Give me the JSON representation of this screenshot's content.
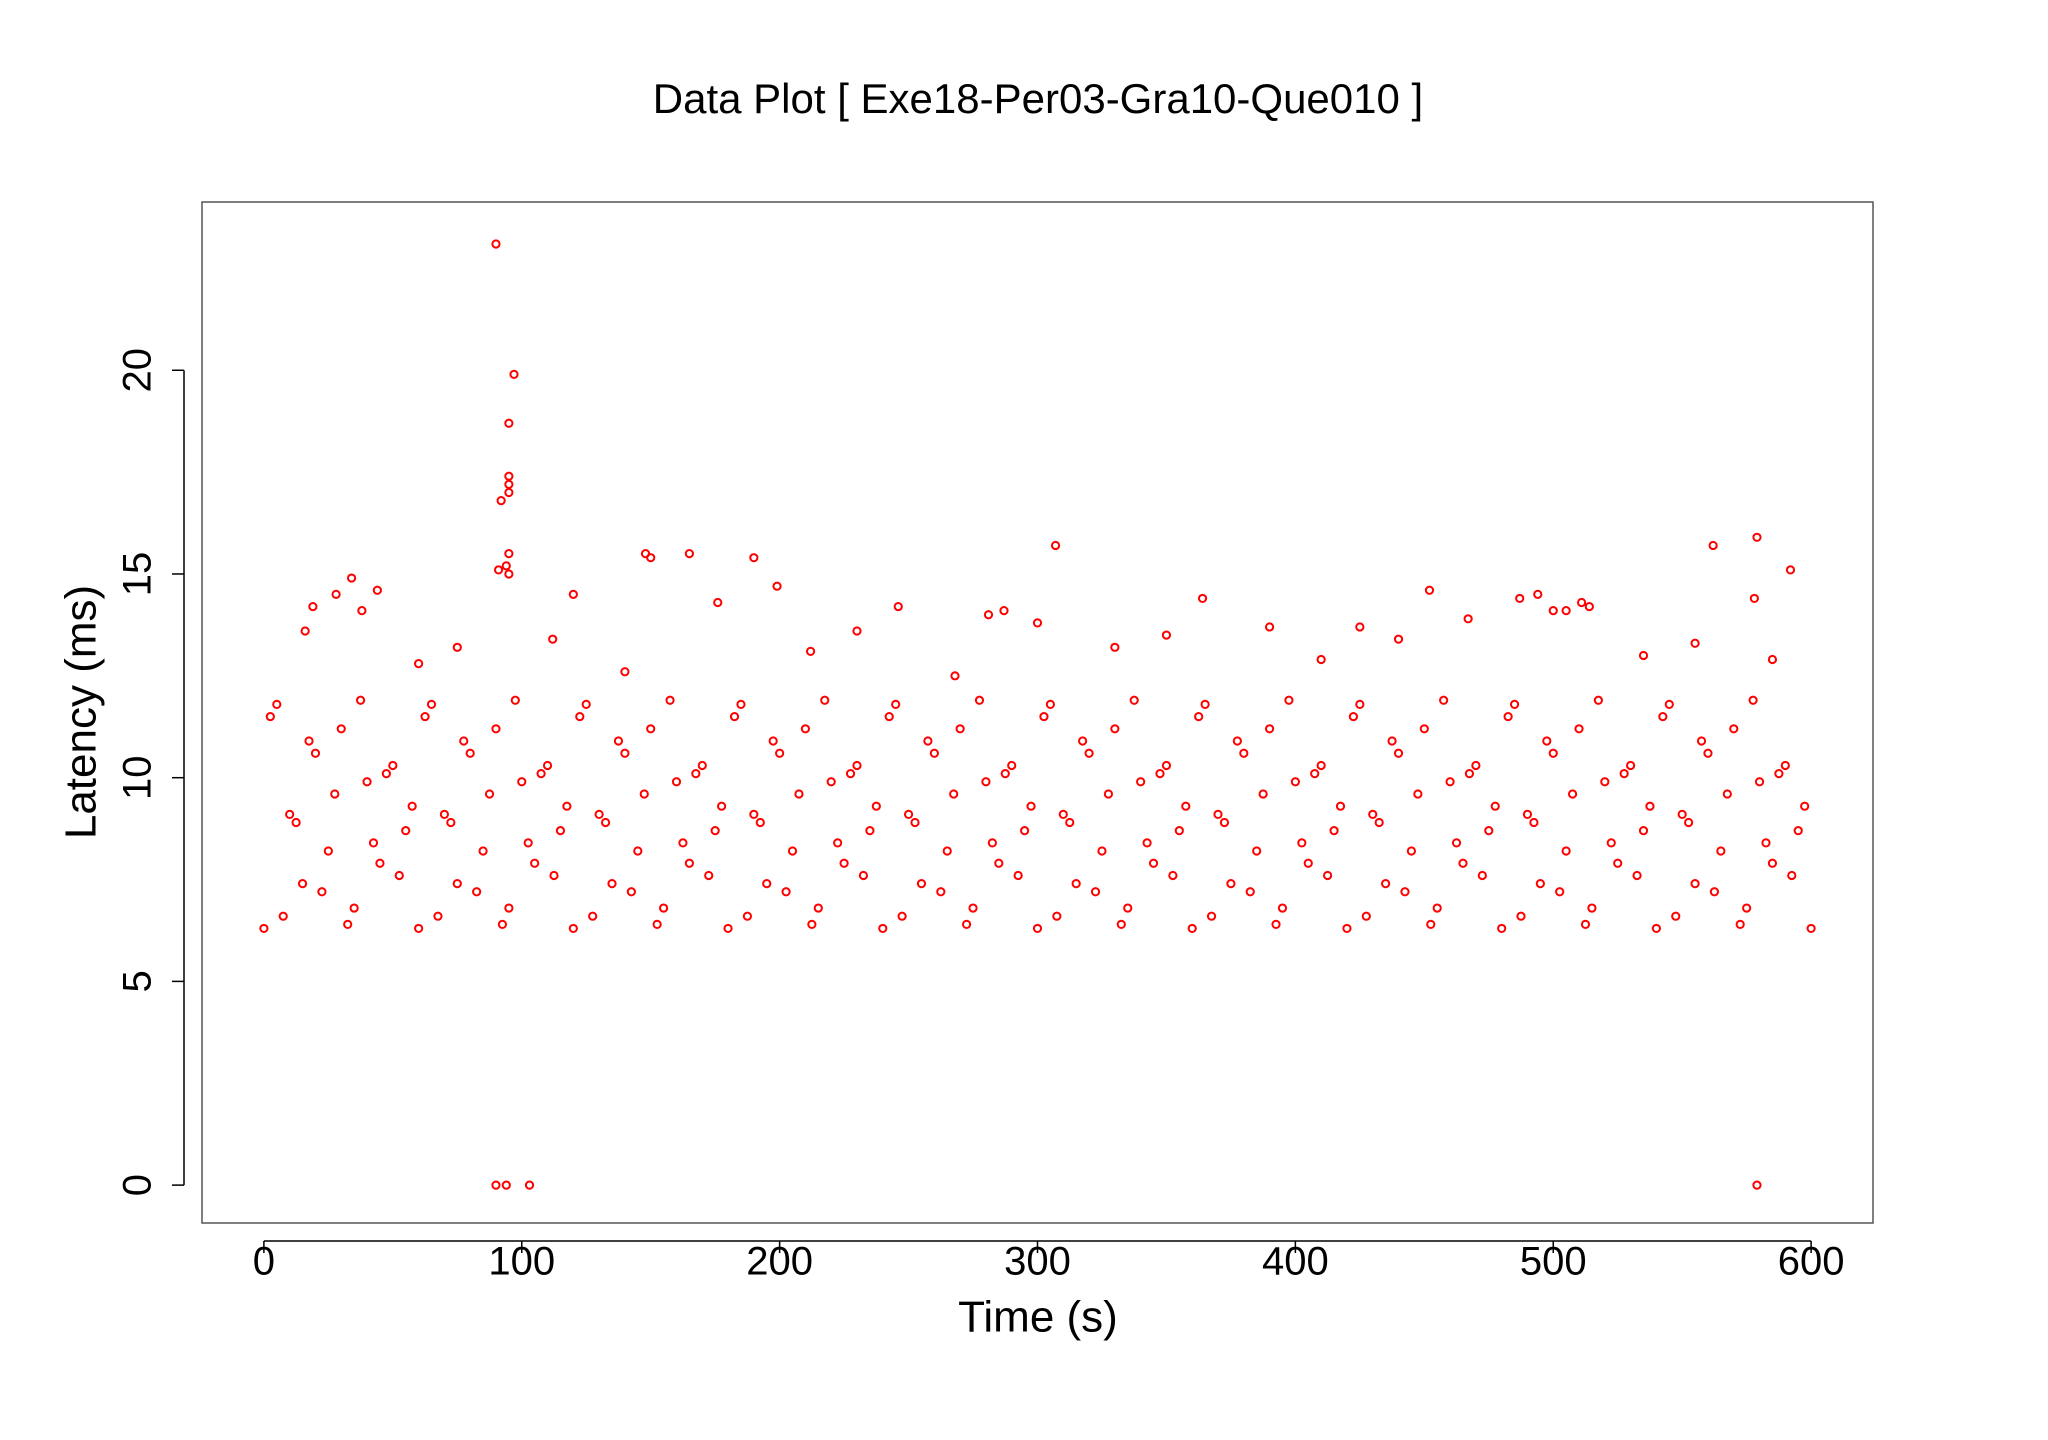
{
  "chart_data": {
    "type": "scatter",
    "title": "Data Plot [ Exe18-Per03-Gra10-Que010 ]",
    "xlabel": "Time (s)",
    "ylabel": "Latency (ms)",
    "color": "#ff0000",
    "x": [
      90,
      97,
      95,
      95,
      95,
      95,
      92,
      95,
      91,
      94,
      95,
      90,
      94,
      103,
      579,
      307,
      562,
      579,
      592,
      165,
      148,
      150,
      190,
      34,
      44,
      199,
      246,
      364,
      452,
      494,
      511,
      514,
      578,
      487,
      120,
      176,
      300,
      287,
      281,
      390,
      425,
      467,
      500,
      505,
      19,
      28,
      16,
      38,
      60,
      75,
      112,
      140,
      212,
      230,
      268,
      330,
      350,
      410,
      440,
      535,
      555,
      585,
      0,
      5,
      10,
      15,
      20,
      25,
      30,
      35,
      40,
      45,
      50,
      55,
      60,
      65,
      70,
      75,
      80,
      85,
      90,
      95,
      100,
      105,
      110,
      115,
      120,
      125,
      130,
      135,
      140,
      145,
      150,
      155,
      160,
      165,
      170,
      175,
      180,
      185,
      190,
      195,
      200,
      205,
      210,
      215,
      220,
      225,
      230,
      235,
      240,
      245,
      250,
      255,
      260,
      265,
      270,
      275,
      280,
      285,
      290,
      295,
      300,
      305,
      310,
      315,
      320,
      325,
      330,
      335,
      340,
      345,
      350,
      355,
      360,
      365,
      370,
      375,
      380,
      385,
      390,
      395,
      400,
      405,
      410,
      415,
      420,
      425,
      430,
      435,
      440,
      445,
      450,
      455,
      460,
      465,
      470,
      475,
      480,
      485,
      490,
      495,
      500,
      505,
      510,
      515,
      520,
      525,
      530,
      535,
      540,
      545,
      550,
      555,
      560,
      565,
      570,
      575,
      580,
      585,
      590,
      595,
      600,
      2.5,
      7.5,
      12.5,
      17.5,
      22.5,
      27.5,
      32.5,
      37.5,
      42.5,
      47.5,
      52.5,
      57.5,
      62.5,
      67.5,
      72.5,
      77.5,
      82.5,
      87.5,
      92.5,
      97.5,
      102.5,
      107.5,
      112.5,
      117.5,
      122.5,
      127.5,
      132.5,
      137.5,
      142.5,
      147.5,
      152.5,
      157.5,
      162.5,
      167.5,
      172.5,
      177.5,
      182.5,
      187.5,
      192.5,
      197.5,
      202.5,
      207.5,
      212.5,
      217.5,
      222.5,
      227.5,
      232.5,
      237.5,
      242.5,
      247.5,
      252.5,
      257.5,
      262.5,
      267.5,
      272.5,
      277.5,
      282.5,
      287.5,
      292.5,
      297.5,
      302.5,
      307.5,
      312.5,
      317.5,
      322.5,
      327.5,
      332.5,
      337.5,
      342.5,
      347.5,
      352.5,
      357.5,
      362.5,
      367.5,
      372.5,
      377.5,
      382.5,
      387.5,
      392.5,
      397.5,
      402.5,
      407.5,
      412.5,
      417.5,
      422.5,
      427.5,
      432.5,
      437.5,
      442.5,
      447.5,
      452.5,
      457.5,
      462.5,
      467.5,
      472.5,
      477.5,
      482.5,
      487.5,
      492.5,
      497.5,
      502.5,
      507.5,
      512.5,
      517.5,
      522.5,
      527.5,
      532.5,
      537.5,
      542.5,
      547.5,
      552.5,
      557.5,
      562.5,
      567.5,
      572.5,
      577.5,
      582.5,
      587.5,
      592.5,
      597.5
    ],
    "values": [
      23.1,
      19.9,
      18.7,
      17.4,
      17.2,
      17.0,
      16.8,
      15.5,
      15.1,
      15.2,
      15.0,
      0,
      0,
      0,
      0,
      15.7,
      15.7,
      15.9,
      15.1,
      15.5,
      15.5,
      15.4,
      15.4,
      14.9,
      14.6,
      14.7,
      14.2,
      14.4,
      14.6,
      14.5,
      14.3,
      14.2,
      14.4,
      14.4,
      14.5,
      14.3,
      13.8,
      14.1,
      14.0,
      13.7,
      13.7,
      13.9,
      14.1,
      14.1,
      14.2,
      14.5,
      13.6,
      14.1,
      12.8,
      13.2,
      13.4,
      12.6,
      13.1,
      13.6,
      12.5,
      13.2,
      13.5,
      12.9,
      13.4,
      13.0,
      13.3,
      12.9,
      6.3,
      11.8,
      9.1,
      7.4,
      10.6,
      8.2,
      11.2,
      6.8,
      9.9,
      7.9,
      10.3,
      8.7,
      6.3,
      11.8,
      9.1,
      7.4,
      10.6,
      8.2,
      11.2,
      6.8,
      9.9,
      7.9,
      10.3,
      8.7,
      6.3,
      11.8,
      9.1,
      7.4,
      10.6,
      8.2,
      11.2,
      6.8,
      9.9,
      7.9,
      10.3,
      8.7,
      6.3,
      11.8,
      9.1,
      7.4,
      10.6,
      8.2,
      11.2,
      6.8,
      9.9,
      7.9,
      10.3,
      8.7,
      6.3,
      11.8,
      9.1,
      7.4,
      10.6,
      8.2,
      11.2,
      6.8,
      9.9,
      7.9,
      10.3,
      8.7,
      6.3,
      11.8,
      9.1,
      7.4,
      10.6,
      8.2,
      11.2,
      6.8,
      9.9,
      7.9,
      10.3,
      8.7,
      6.3,
      11.8,
      9.1,
      7.4,
      10.6,
      8.2,
      11.2,
      6.8,
      9.9,
      7.9,
      10.3,
      8.7,
      6.3,
      11.8,
      9.1,
      7.4,
      10.6,
      8.2,
      11.2,
      6.8,
      9.9,
      7.9,
      10.3,
      8.7,
      6.3,
      11.8,
      9.1,
      7.4,
      10.6,
      8.2,
      11.2,
      6.8,
      9.9,
      7.9,
      10.3,
      8.7,
      6.3,
      11.8,
      9.1,
      7.4,
      10.6,
      8.2,
      11.2,
      6.8,
      9.9,
      7.9,
      10.3,
      8.7,
      6.3,
      11.5,
      6.6,
      8.9,
      10.9,
      7.2,
      9.6,
      6.4,
      11.9,
      8.4,
      10.1,
      7.6,
      9.3,
      11.5,
      6.6,
      8.9,
      10.9,
      7.2,
      9.6,
      6.4,
      11.9,
      8.4,
      10.1,
      7.6,
      9.3,
      11.5,
      6.6,
      8.9,
      10.9,
      7.2,
      9.6,
      6.4,
      11.9,
      8.4,
      10.1,
      7.6,
      9.3,
      11.5,
      6.6,
      8.9,
      10.9,
      7.2,
      9.6,
      6.4,
      11.9,
      8.4,
      10.1,
      7.6,
      9.3,
      11.5,
      6.6,
      8.9,
      10.9,
      7.2,
      9.6,
      6.4,
      11.9,
      8.4,
      10.1,
      7.6,
      9.3,
      11.5,
      6.6,
      8.9,
      10.9,
      7.2,
      9.6,
      6.4,
      11.9,
      8.4,
      10.1,
      7.6,
      9.3,
      11.5,
      6.6,
      8.9,
      10.9,
      7.2,
      9.6,
      6.4,
      11.9,
      8.4,
      10.1,
      7.6,
      9.3,
      11.5,
      6.6,
      8.9,
      10.9,
      7.2,
      9.6,
      6.4,
      11.9,
      8.4,
      10.1,
      7.6,
      9.3,
      11.5,
      6.6,
      8.9,
      10.9,
      7.2,
      9.6,
      6.4,
      11.9,
      8.4,
      10.1,
      7.6,
      9.3,
      11.5,
      6.6,
      8.9,
      10.9,
      7.2,
      9.6,
      6.4,
      11.9,
      8.4,
      10.1,
      7.6,
      9.3
    ],
    "xlim": [
      -24,
      624
    ],
    "ylim": [
      -0.93,
      24.13
    ],
    "xticks": [
      0,
      100,
      200,
      300,
      400,
      500,
      600
    ],
    "yticks": [
      0,
      5,
      10,
      15,
      20
    ]
  }
}
